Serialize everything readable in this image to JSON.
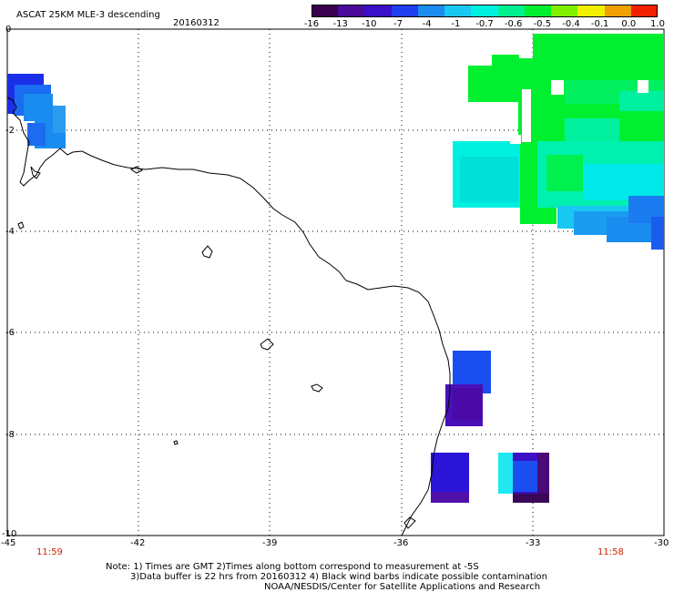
{
  "header": {
    "title": "ASCAT 25KM MLE-3 descending",
    "date": "20160312"
  },
  "colorbar": {
    "ticks": [
      "-16",
      "-13",
      "-10",
      "-7",
      "-4",
      "-1",
      "-0.7",
      "-0.6",
      "-0.5",
      "-0.4",
      "-0.1",
      "0.0",
      "1.0"
    ],
    "colors": [
      "#3a0050",
      "#4a0a9a",
      "#3a10c8",
      "#1e3ef0",
      "#1a8cf0",
      "#18c8f0",
      "#00f0e0",
      "#00f090",
      "#00f030",
      "#80f000",
      "#f0f000",
      "#f0a000",
      "#f02000"
    ]
  },
  "axes": {
    "x_ticks": [
      "-45",
      "-42",
      "-39",
      "-36",
      "-33",
      "-30"
    ],
    "y_ticks": [
      "0",
      "-2",
      "-4",
      "-6",
      "-8",
      "-10"
    ],
    "lon_range": [
      -45,
      -30
    ],
    "lat_range": [
      -10,
      0
    ]
  },
  "times": {
    "left": "11:59",
    "right": "11:58"
  },
  "notes": {
    "line1": "Note: 1) Times are GMT 2)Times along bottom correspond to measurement at -5S",
    "line2": "3)Data buffer is 22 hrs from 20160312 4) Black wind barbs indicate possible contamination",
    "line3": "NOAA/NESDIS/Center for Satellite Applications and Research"
  }
}
